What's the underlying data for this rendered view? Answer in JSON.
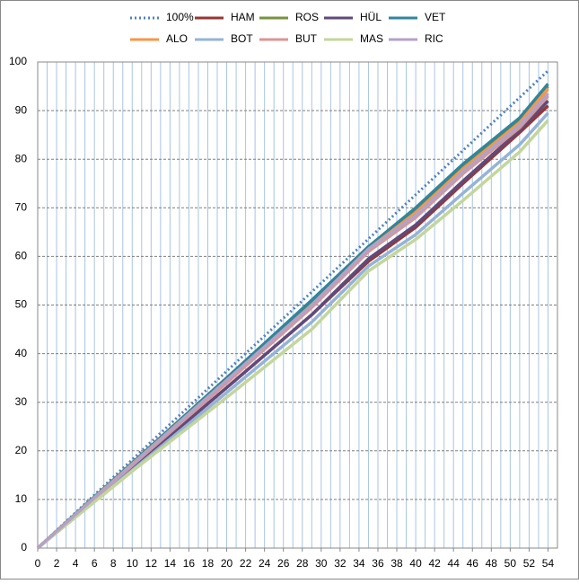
{
  "chart_data": {
    "type": "line",
    "x": [
      0,
      10,
      20,
      29,
      35,
      40,
      45,
      51,
      54
    ],
    "series": [
      {
        "name": "100%",
        "color": "#4f81bd",
        "linestyle": "dotted",
        "values": [
          0,
          18.2,
          36.4,
          52.7,
          63.6,
          72.7,
          81.8,
          92.7,
          98.2
        ]
      },
      {
        "name": "HAM",
        "color": "#953735",
        "values": [
          0,
          16.5,
          33,
          48,
          59,
          66,
          75,
          85.5,
          91
        ]
      },
      {
        "name": "ROS",
        "color": "#77933c",
        "values": [
          0,
          17.5,
          35,
          50.5,
          62,
          69.5,
          78.5,
          88,
          95
        ]
      },
      {
        "name": "HÜL",
        "color": "#604a7b",
        "values": [
          0,
          16.5,
          33,
          48,
          59.5,
          66.5,
          75.5,
          86,
          92
        ]
      },
      {
        "name": "VET",
        "color": "#31859c",
        "values": [
          0,
          17.5,
          35,
          51,
          62,
          70,
          79,
          88.5,
          95.5
        ]
      },
      {
        "name": "ALO",
        "color": "#f79646",
        "values": [
          0,
          17.3,
          34.5,
          50,
          61.5,
          69,
          78,
          87.5,
          94.5
        ]
      },
      {
        "name": "BOT",
        "color": "#95b3d7",
        "values": [
          0,
          16,
          32,
          46.5,
          58,
          64.5,
          73,
          83,
          89.5
        ]
      },
      {
        "name": "BUT",
        "color": "#d99694",
        "values": [
          0,
          17,
          34,
          49.5,
          61,
          68,
          77,
          86.5,
          93
        ]
      },
      {
        "name": "MAS",
        "color": "#c3d69b",
        "values": [
          0,
          15.8,
          31,
          45,
          57,
          63.5,
          71.5,
          81.5,
          88
        ]
      },
      {
        "name": "RIC",
        "color": "#b3a2c7",
        "values": [
          0,
          17.2,
          34.5,
          50,
          61.5,
          68.5,
          77.5,
          87,
          93.5
        ]
      }
    ],
    "xlim": [
      0,
      55
    ],
    "ylim": [
      0,
      100
    ],
    "xticks": [
      0,
      2,
      4,
      6,
      8,
      10,
      12,
      14,
      16,
      18,
      20,
      22,
      24,
      26,
      28,
      30,
      32,
      34,
      36,
      38,
      40,
      42,
      44,
      46,
      48,
      50,
      52,
      54
    ],
    "yticks": [
      0,
      10,
      20,
      30,
      40,
      50,
      60,
      70,
      80,
      90,
      100
    ],
    "x_minor_step": 1,
    "grid": true,
    "legend": "top"
  }
}
